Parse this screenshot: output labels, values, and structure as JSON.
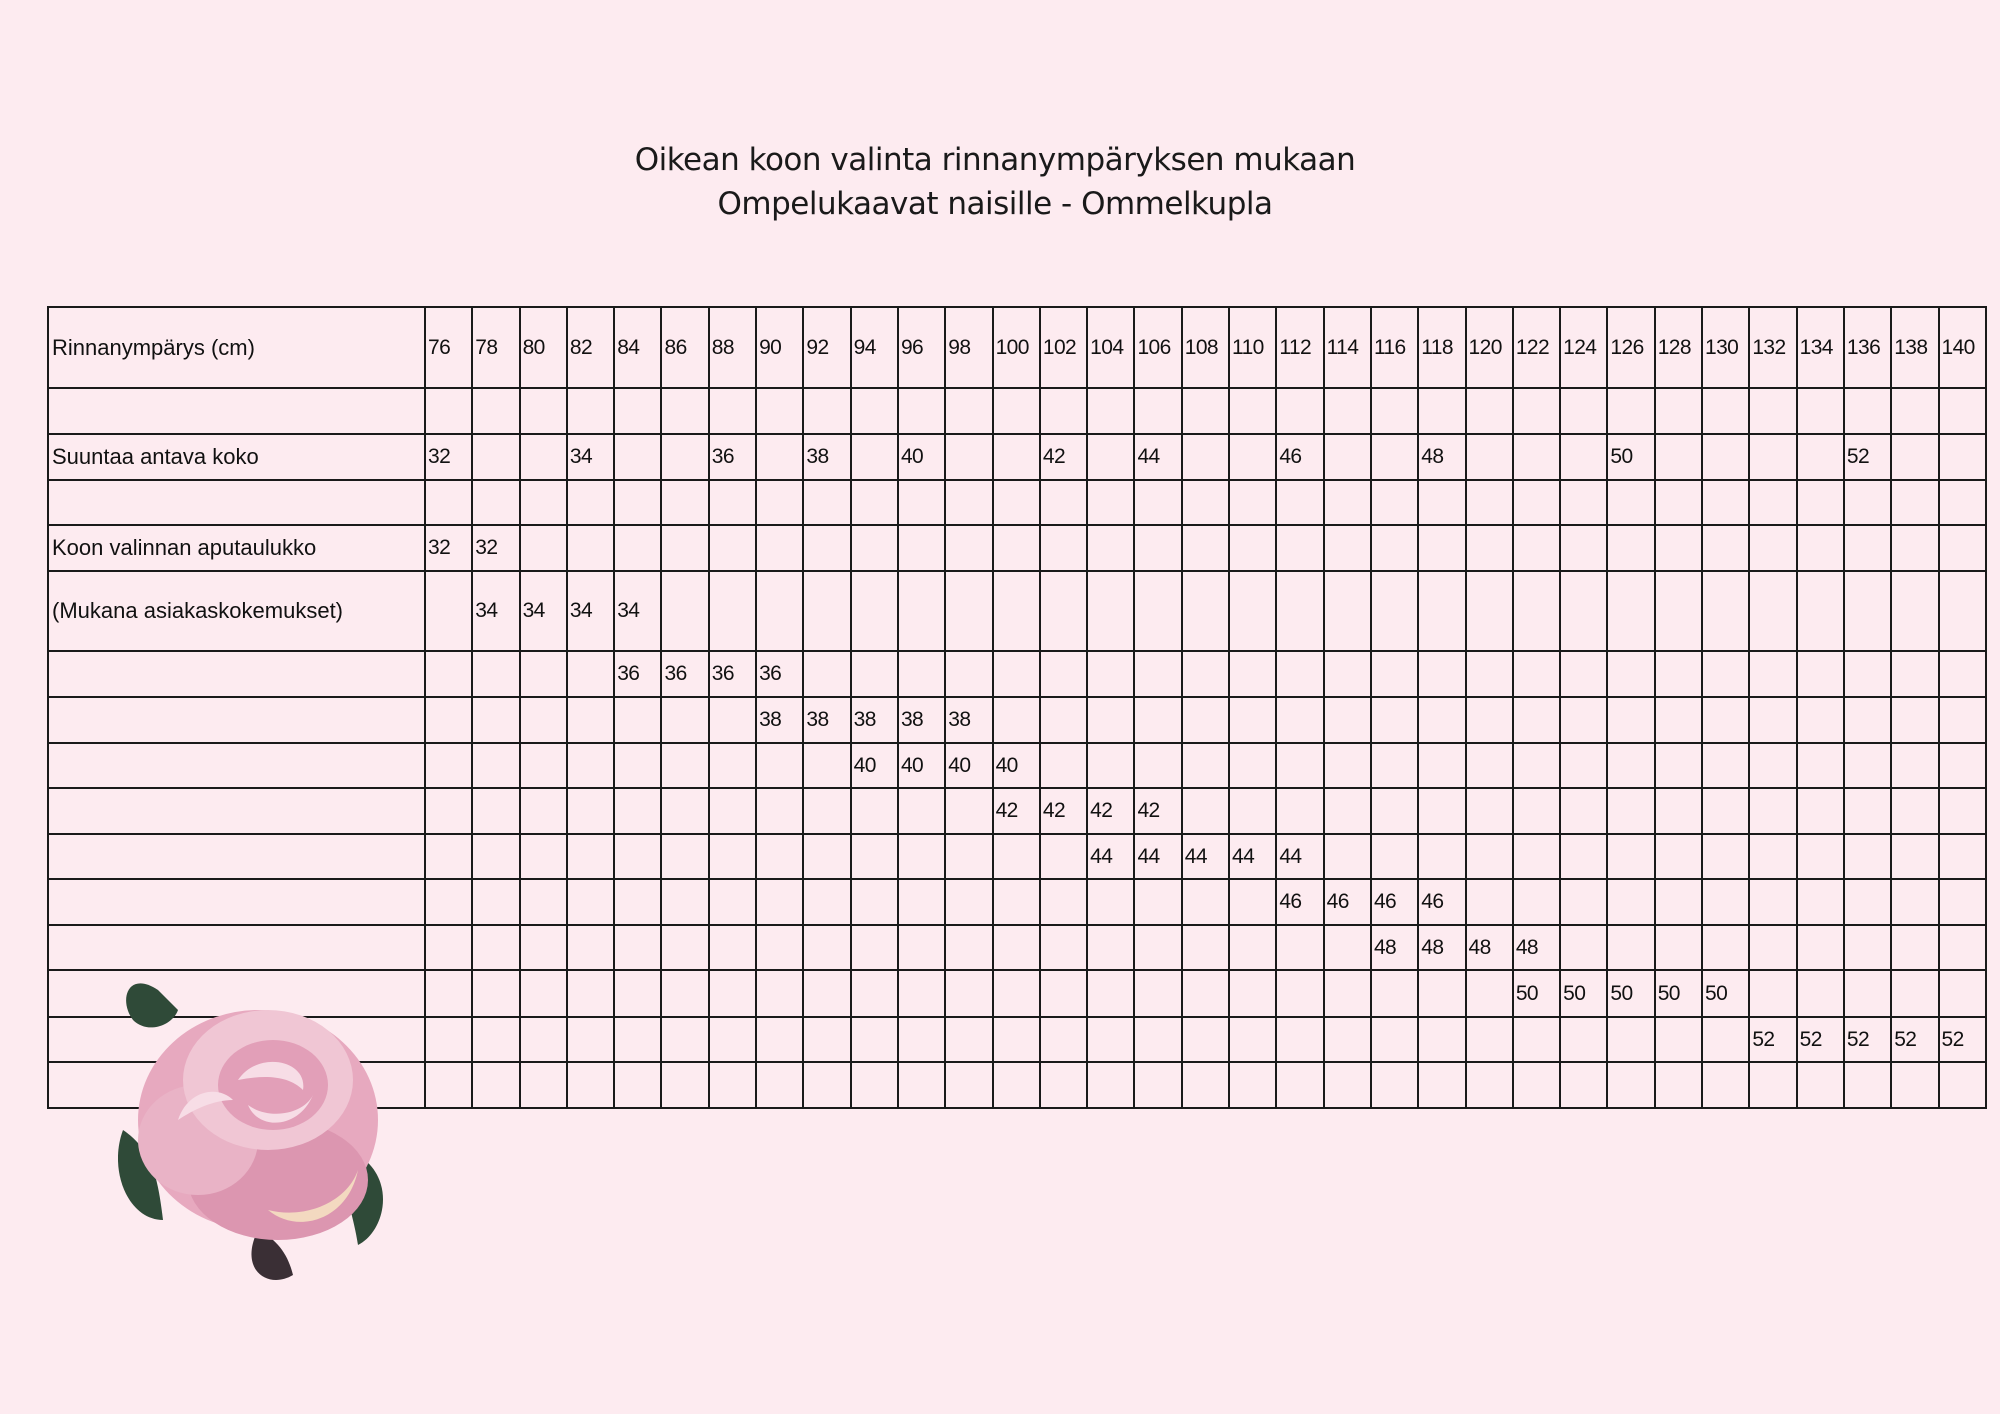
{
  "title": {
    "line1": "Oikean koon valinta rinnanympäryksen mukaan",
    "line2": "Ompelukaavat naisille - Ommelkupla"
  },
  "table": {
    "header_label": "Rinnanympärys (cm)",
    "columns": [
      "76",
      "78",
      "80",
      "82",
      "84",
      "86",
      "88",
      "90",
      "92",
      "94",
      "96",
      "98",
      "100",
      "102",
      "104",
      "106",
      "108",
      "110",
      "112",
      "114",
      "116",
      "118",
      "120",
      "122",
      "124",
      "126",
      "128",
      "130",
      "132",
      "134",
      "136",
      "138",
      "140"
    ],
    "rows": [
      {
        "label": "",
        "cells": {}
      },
      {
        "label": "Suuntaa antava koko",
        "cells": {
          "76": "32",
          "82": "34",
          "88": "36",
          "92": "38",
          "96": "40",
          "102": "42",
          "106": "44",
          "112": "46",
          "118": "48",
          "126": "50",
          "136": "52"
        }
      },
      {
        "label": "",
        "cells": {}
      },
      {
        "label": "Koon valinnan aputaulukko",
        "cells": {
          "76": "32",
          "78": "32"
        }
      },
      {
        "label": "(Mukana asiakaskokemukset)",
        "cells": {
          "78": "34",
          "80": "34",
          "82": "34",
          "84": "34"
        }
      },
      {
        "label": "",
        "cells": {
          "84": "36",
          "86": "36",
          "88": "36",
          "90": "36"
        }
      },
      {
        "label": "",
        "cells": {
          "90": "38",
          "92": "38",
          "94": "38",
          "96": "38",
          "98": "38"
        }
      },
      {
        "label": "",
        "cells": {
          "94": "40",
          "96": "40",
          "98": "40",
          "100": "40"
        }
      },
      {
        "label": "",
        "cells": {
          "100": "42",
          "102": "42",
          "104": "42",
          "106": "42"
        }
      },
      {
        "label": "",
        "cells": {
          "104": "44",
          "106": "44",
          "108": "44",
          "110": "44",
          "112": "44"
        }
      },
      {
        "label": "",
        "cells": {
          "112": "46",
          "114": "46",
          "116": "46",
          "118": "46"
        }
      },
      {
        "label": "",
        "cells": {
          "116": "48",
          "118": "48",
          "120": "48",
          "122": "48"
        }
      },
      {
        "label": "",
        "cells": {
          "122": "50",
          "124": "50",
          "126": "50",
          "128": "50",
          "130": "50"
        }
      },
      {
        "label": "",
        "cells": {
          "132": "52",
          "134": "52",
          "136": "52",
          "138": "52",
          "140": "52"
        }
      },
      {
        "label": "",
        "cells": {}
      }
    ]
  },
  "colors": {
    "background": "#fdebf0",
    "grid": "#1a1a1a",
    "rose": "#e7a9bf",
    "leaf": "#2f4a38"
  },
  "decoration": {
    "image": "pink-rose-illustration"
  }
}
